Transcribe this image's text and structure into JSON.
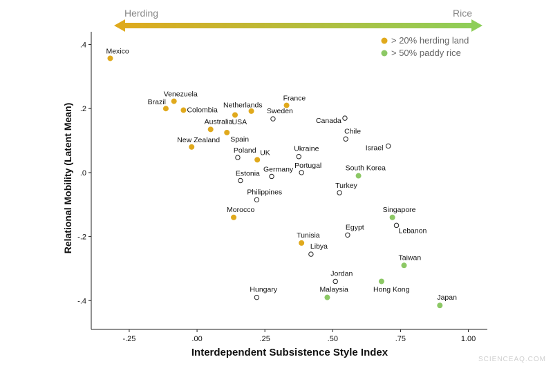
{
  "chart_data": {
    "type": "scatter",
    "xlabel": "Interdependent Subsistence Style Index",
    "ylabel": "Relational Mobility (Latent Mean)",
    "xlim": [
      -0.39,
      1.07
    ],
    "ylim": [
      -0.49,
      0.44
    ],
    "x_ticks": [
      -0.25,
      0.0,
      0.25,
      0.5,
      0.75,
      1.0
    ],
    "x_tick_labels": [
      "-.25",
      ".00",
      ".25",
      ".50",
      ".75",
      "1.00"
    ],
    "y_ticks": [
      0.4,
      0.2,
      0.0,
      -0.2,
      -0.4
    ],
    "y_tick_labels": [
      ".4",
      ".2",
      ".0",
      "-.2",
      "-.4"
    ],
    "grid": false,
    "arrow": {
      "left_label": "Herding",
      "right_label": "Rice",
      "left_color": "#e0a91c",
      "right_color": "#8ccf5a"
    },
    "legend": {
      "placement": "top-right",
      "entries": [
        {
          "key": "herding",
          "label": "> 20% herding land",
          "color": "#e0a91c",
          "filled": true
        },
        {
          "key": "rice",
          "label": "> 50% paddy rice",
          "color": "#8cc865",
          "filled": true
        }
      ]
    },
    "points": [
      {
        "name": "Mexico",
        "x": -0.32,
        "y": 0.357,
        "group": "herding",
        "dx": -6,
        "dy": -7,
        "anchor": "start"
      },
      {
        "name": "Venezuela",
        "x": -0.085,
        "y": 0.223,
        "group": "herding",
        "dx": -15,
        "dy": -7,
        "anchor": "start"
      },
      {
        "name": "Brazil",
        "x": -0.115,
        "y": 0.2,
        "group": "herding",
        "dx": 0,
        "dy": -6,
        "anchor": "end"
      },
      {
        "name": "Colombia",
        "x": -0.05,
        "y": 0.195,
        "group": "herding",
        "dx": 5,
        "dy": 3,
        "anchor": "start"
      },
      {
        "name": "Netherlands",
        "x": 0.14,
        "y": 0.18,
        "group": "herding",
        "dx": -17,
        "dy": -11,
        "anchor": "start"
      },
      {
        "name": "France",
        "x": 0.33,
        "y": 0.21,
        "group": "herding",
        "dx": -5,
        "dy": -7,
        "anchor": "start"
      },
      {
        "name": "Sweden",
        "x": 0.28,
        "y": 0.168,
        "group": "none",
        "dx": -9,
        "dy": -8,
        "anchor": "start"
      },
      {
        "name": "USA",
        "x": 0.2,
        "y": 0.192,
        "group": "herding",
        "dx": -28,
        "dy": 19,
        "anchor": "start"
      },
      {
        "name": "Australia",
        "x": 0.05,
        "y": 0.135,
        "group": "herding",
        "dx": -9,
        "dy": -8,
        "anchor": "start"
      },
      {
        "name": "Spain",
        "x": 0.11,
        "y": 0.125,
        "group": "herding",
        "dx": 5,
        "dy": 13,
        "anchor": "start"
      },
      {
        "name": "New Zealand",
        "x": -0.02,
        "y": 0.08,
        "group": "herding",
        "dx": -21,
        "dy": -7,
        "anchor": "start"
      },
      {
        "name": "Canada",
        "x": 0.545,
        "y": 0.17,
        "group": "none",
        "dx": -42,
        "dy": 7,
        "anchor": "start"
      },
      {
        "name": "Chile",
        "x": 0.548,
        "y": 0.105,
        "group": "none",
        "dx": -2,
        "dy": -8,
        "anchor": "start"
      },
      {
        "name": "Israel",
        "x": 0.705,
        "y": 0.083,
        "group": "none",
        "dx": -33,
        "dy": 6,
        "anchor": "start"
      },
      {
        "name": "Poland",
        "x": 0.15,
        "y": 0.047,
        "group": "none",
        "dx": -6,
        "dy": -7,
        "anchor": "start"
      },
      {
        "name": "UK",
        "x": 0.222,
        "y": 0.04,
        "group": "herding",
        "dx": 4,
        "dy": -7,
        "anchor": "start"
      },
      {
        "name": "Ukraine",
        "x": 0.375,
        "y": 0.05,
        "group": "none",
        "dx": -7,
        "dy": -8,
        "anchor": "start"
      },
      {
        "name": "Portugal",
        "x": 0.385,
        "y": 0,
        "group": "none",
        "dx": -10,
        "dy": -7,
        "anchor": "start"
      },
      {
        "name": "Germany",
        "x": 0.275,
        "y": -0.012,
        "group": "none",
        "dx": -12,
        "dy": -7,
        "anchor": "start"
      },
      {
        "name": "Estonia",
        "x": 0.16,
        "y": -0.025,
        "group": "none",
        "dx": -7,
        "dy": -7,
        "anchor": "start"
      },
      {
        "name": "South Korea",
        "x": 0.595,
        "y": -0.01,
        "group": "rice",
        "dx": -19,
        "dy": -8,
        "anchor": "start"
      },
      {
        "name": "Turkey",
        "x": 0.525,
        "y": -0.063,
        "group": "none",
        "dx": -6,
        "dy": -7,
        "anchor": "start"
      },
      {
        "name": "Philippines",
        "x": 0.22,
        "y": -0.085,
        "group": "none",
        "dx": -14,
        "dy": -8,
        "anchor": "start"
      },
      {
        "name": "Morocco",
        "x": 0.135,
        "y": -0.14,
        "group": "herding",
        "dx": -10,
        "dy": -8,
        "anchor": "start"
      },
      {
        "name": "Singapore",
        "x": 0.72,
        "y": -0.14,
        "group": "rice",
        "dx": -14,
        "dy": -8,
        "anchor": "start"
      },
      {
        "name": "Lebanon",
        "x": 0.735,
        "y": -0.165,
        "group": "none",
        "dx": 3,
        "dy": 11,
        "anchor": "start"
      },
      {
        "name": "Egypt",
        "x": 0.555,
        "y": -0.195,
        "group": "none",
        "dx": -3,
        "dy": -8,
        "anchor": "start"
      },
      {
        "name": "Tunisia",
        "x": 0.385,
        "y": -0.22,
        "group": "herding",
        "dx": -7,
        "dy": -8,
        "anchor": "start"
      },
      {
        "name": "Libya",
        "x": 0.42,
        "y": -0.255,
        "group": "none",
        "dx": -1,
        "dy": -8,
        "anchor": "start"
      },
      {
        "name": "Taiwan",
        "x": 0.763,
        "y": -0.29,
        "group": "rice",
        "dx": -8,
        "dy": -8,
        "anchor": "start"
      },
      {
        "name": "Jordan",
        "x": 0.51,
        "y": -0.34,
        "group": "none",
        "dx": -7,
        "dy": -8,
        "anchor": "start"
      },
      {
        "name": "Hong Kong",
        "x": 0.68,
        "y": -0.34,
        "group": "rice",
        "dx": -12,
        "dy": 15,
        "anchor": "start"
      },
      {
        "name": "Malaysia",
        "x": 0.48,
        "y": -0.39,
        "group": "rice",
        "dx": -11,
        "dy": -8,
        "anchor": "start"
      },
      {
        "name": "Hungary",
        "x": 0.22,
        "y": -0.39,
        "group": "none",
        "dx": -10,
        "dy": -8,
        "anchor": "start"
      },
      {
        "name": "Japan",
        "x": 0.895,
        "y": -0.415,
        "group": "rice",
        "dx": -4,
        "dy": -8,
        "anchor": "start"
      }
    ]
  },
  "watermark": "SCIENCEAQ.COM"
}
